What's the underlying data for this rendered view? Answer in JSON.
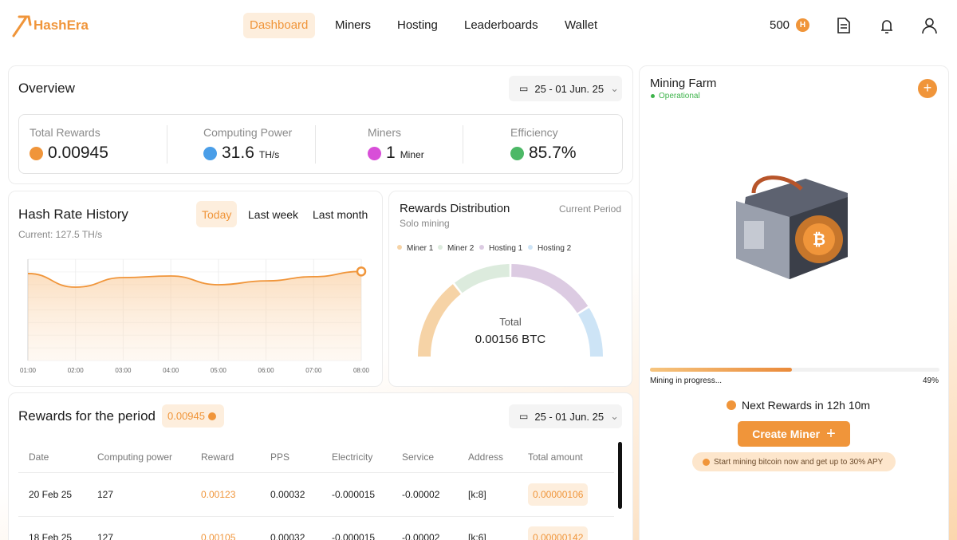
{
  "brand": "HashEra",
  "nav": {
    "items": [
      "Dashboard",
      "Miners",
      "Hosting",
      "Leaderboards",
      "Wallet"
    ],
    "active": 0
  },
  "balance": {
    "amount": "500",
    "coin": "H"
  },
  "overview": {
    "title": "Overview",
    "date": "25 - 01 Jun. 25",
    "stats": [
      {
        "label": "Total Rewards",
        "value": "0.00945"
      },
      {
        "label": "Computing Power",
        "value": "31.6",
        "unit": "TH/s"
      },
      {
        "label": "Miners",
        "value": "1",
        "unit": "Miner"
      },
      {
        "label": "Efficiency",
        "value": "85.7%"
      }
    ]
  },
  "hash_rate": {
    "title": "Hash Rate History",
    "tabs": [
      "Today",
      "Last week",
      "Last month"
    ],
    "active_tab": 0,
    "subtitle": "Current: 127.5 TH/s",
    "chart_data": {
      "type": "line",
      "categories": [
        "01:00",
        "02:00",
        "03:00",
        "04:00",
        "05:00",
        "06:00",
        "07:00",
        "08:00"
      ],
      "values": [
        124.5,
        105,
        118.7,
        121,
        108.5,
        114,
        120,
        127.5
      ],
      "color": "#f0953a",
      "ylim": [
        0,
        145
      ],
      "grid": true
    }
  },
  "distribution": {
    "title": "Rewards Distribution",
    "subtitle": "Solo mining",
    "period": "Current Period",
    "chart_data": {
      "type": "donut",
      "categories": [
        "Miner 1",
        "Miner 2",
        "Hosting 1",
        "Hosting 2"
      ],
      "values": [
        29,
        21,
        32,
        18
      ],
      "colors": [
        "#f6d3a6",
        "#dcebdd",
        "#dccbe2",
        "#cde4f6"
      ],
      "total_label": "Total",
      "total_value": "0.00156 BTC"
    }
  },
  "rewards": {
    "title": "Rewards for the period",
    "badge": "0.00945",
    "date": "25 - 01 Jun. 25",
    "table": {
      "columns": [
        "Date",
        "Computing power",
        "Reward",
        "PPS",
        "Electricity",
        "Service",
        "Address",
        "Total amount"
      ],
      "rows": [
        [
          "20 Feb 25",
          "127",
          "0.00123",
          "0.00032",
          "-0.000015",
          "-0.00002",
          "[k:8]",
          "0.00000106"
        ],
        [
          "18 Feb 25",
          "127",
          "0.00105",
          "0.00032",
          "-0.000015",
          "-0.00002",
          "[k:6]",
          "0.00000142"
        ]
      ]
    }
  },
  "farm": {
    "title": "Mining Farm",
    "status": "Operational",
    "progress": {
      "label": "Mining in progress...",
      "value": 49,
      "value_label": "49%"
    },
    "next": "Next Rewards in 12h 10m",
    "button": "Create Miner",
    "promo": "Start mining bitcoin now and get up to 30% APY"
  }
}
